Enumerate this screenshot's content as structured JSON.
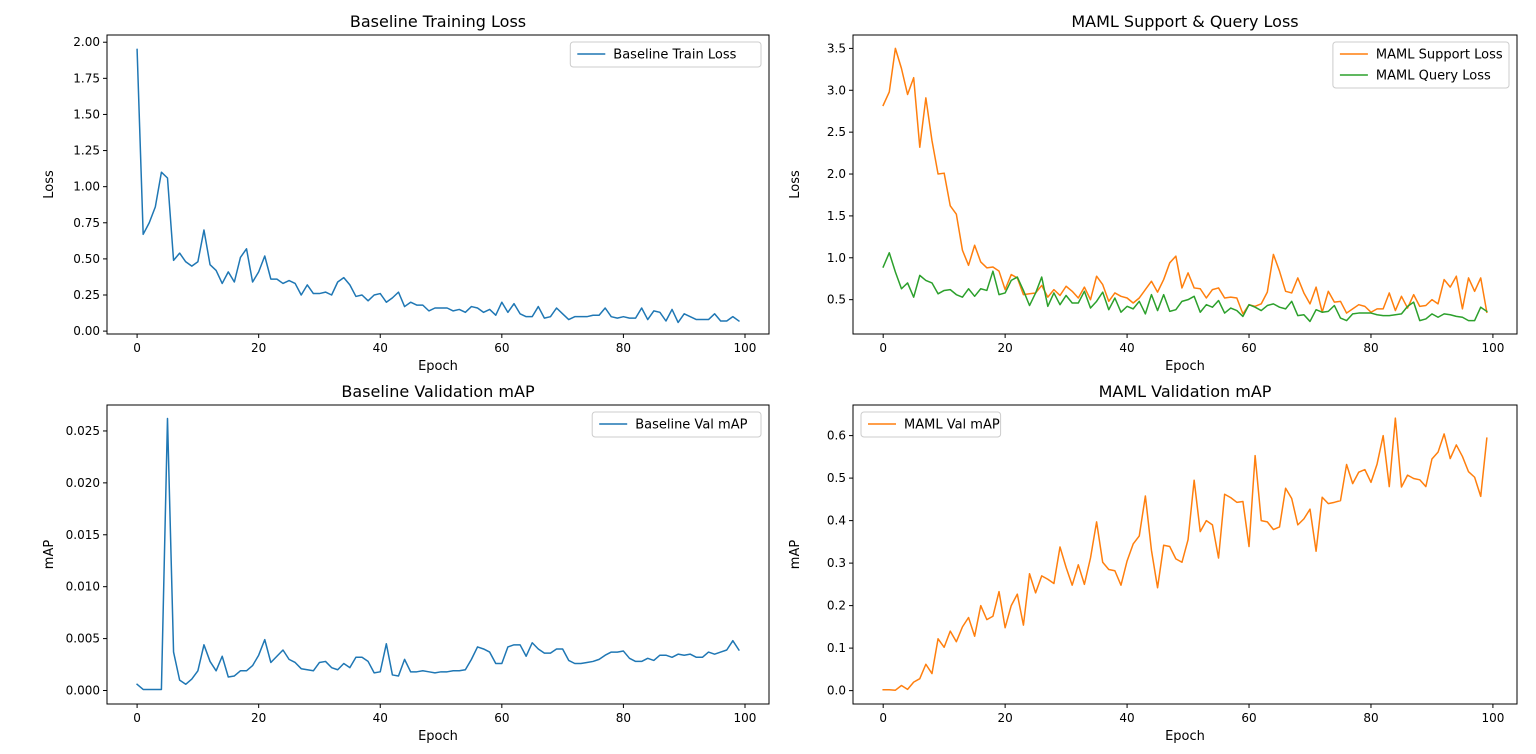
{
  "colors": {
    "blue": "#1f77b4",
    "orange": "#ff7f0e",
    "green": "#2ca02c"
  },
  "chart_data": [
    {
      "id": "baseline-training-loss",
      "type": "line",
      "title": "Baseline Training Loss",
      "xlabel": "Epoch",
      "ylabel": "Loss",
      "xlim": [
        -4.95,
        103.95
      ],
      "ylim": [
        -0.02,
        2.05
      ],
      "xticks": [
        0,
        20,
        40,
        60,
        80,
        100
      ],
      "xtick_labels": [
        "0",
        "20",
        "40",
        "60",
        "80",
        "100"
      ],
      "yticks": [
        0,
        0.25,
        0.5,
        0.75,
        1.0,
        1.25,
        1.5,
        1.75,
        2.0
      ],
      "ytick_labels": [
        "0.00",
        "0.25",
        "0.50",
        "0.75",
        "1.00",
        "1.25",
        "1.50",
        "1.75",
        "2.00"
      ],
      "legend": "top-right",
      "grid": false,
      "series": [
        {
          "name": "Baseline Train Loss",
          "color": "#1f77b4",
          "values": [
            1.95,
            0.67,
            0.75,
            0.86,
            1.1,
            1.06,
            0.49,
            0.54,
            0.48,
            0.45,
            0.48,
            0.7,
            0.46,
            0.42,
            0.33,
            0.41,
            0.34,
            0.51,
            0.57,
            0.34,
            0.41,
            0.52,
            0.36,
            0.36,
            0.33,
            0.35,
            0.33,
            0.25,
            0.32,
            0.26,
            0.26,
            0.27,
            0.25,
            0.34,
            0.37,
            0.32,
            0.24,
            0.25,
            0.21,
            0.25,
            0.26,
            0.2,
            0.23,
            0.27,
            0.17,
            0.2,
            0.18,
            0.18,
            0.14,
            0.16,
            0.16,
            0.16,
            0.14,
            0.15,
            0.13,
            0.17,
            0.16,
            0.13,
            0.15,
            0.11,
            0.2,
            0.13,
            0.19,
            0.12,
            0.1,
            0.1,
            0.17,
            0.09,
            0.1,
            0.16,
            0.12,
            0.08,
            0.1,
            0.1,
            0.1,
            0.11,
            0.11,
            0.16,
            0.1,
            0.09,
            0.1,
            0.09,
            0.09,
            0.16,
            0.08,
            0.14,
            0.13,
            0.07,
            0.15,
            0.06,
            0.12,
            0.1,
            0.08,
            0.08,
            0.08,
            0.12,
            0.07,
            0.07,
            0.1,
            0.07
          ]
        }
      ]
    },
    {
      "id": "maml-support-query-loss",
      "type": "line",
      "title": "MAML Support & Query Loss",
      "xlabel": "Epoch",
      "ylabel": "Loss",
      "xlim": [
        -4.95,
        103.95
      ],
      "ylim": [
        0.09,
        3.66
      ],
      "xticks": [
        0,
        20,
        40,
        60,
        80,
        100
      ],
      "xtick_labels": [
        "0",
        "20",
        "40",
        "60",
        "80",
        "100"
      ],
      "yticks": [
        0.5,
        1.0,
        1.5,
        2.0,
        2.5,
        3.0,
        3.5
      ],
      "ytick_labels": [
        "0.5",
        "1.0",
        "1.5",
        "2.0",
        "2.5",
        "3.0",
        "3.5"
      ],
      "legend": "top-right",
      "grid": false,
      "series": [
        {
          "name": "MAML Support Loss",
          "color": "#ff7f0e",
          "values": [
            2.82,
            2.98,
            3.5,
            3.26,
            2.95,
            3.15,
            2.32,
            2.91,
            2.4,
            2.0,
            2.01,
            1.62,
            1.52,
            1.09,
            0.91,
            1.15,
            0.95,
            0.88,
            0.89,
            0.84,
            0.62,
            0.8,
            0.76,
            0.56,
            0.57,
            0.58,
            0.67,
            0.53,
            0.62,
            0.55,
            0.66,
            0.6,
            0.52,
            0.65,
            0.5,
            0.78,
            0.68,
            0.48,
            0.58,
            0.54,
            0.52,
            0.46,
            0.52,
            0.62,
            0.72,
            0.59,
            0.74,
            0.94,
            1.02,
            0.64,
            0.82,
            0.64,
            0.63,
            0.52,
            0.62,
            0.64,
            0.52,
            0.53,
            0.52,
            0.33,
            0.44,
            0.42,
            0.45,
            0.59,
            1.04,
            0.84,
            0.6,
            0.58,
            0.76,
            0.58,
            0.45,
            0.65,
            0.35,
            0.6,
            0.47,
            0.48,
            0.34,
            0.39,
            0.44,
            0.42,
            0.35,
            0.39,
            0.39,
            0.58,
            0.37,
            0.54,
            0.4,
            0.56,
            0.42,
            0.43,
            0.5,
            0.45,
            0.74,
            0.65,
            0.78,
            0.39,
            0.76,
            0.6,
            0.76,
            0.35
          ]
        },
        {
          "name": "MAML Query Loss",
          "color": "#2ca02c",
          "values": [
            0.89,
            1.06,
            0.83,
            0.63,
            0.7,
            0.53,
            0.79,
            0.73,
            0.7,
            0.57,
            0.61,
            0.62,
            0.56,
            0.53,
            0.63,
            0.54,
            0.63,
            0.61,
            0.84,
            0.56,
            0.58,
            0.73,
            0.77,
            0.61,
            0.43,
            0.58,
            0.77,
            0.42,
            0.58,
            0.44,
            0.55,
            0.46,
            0.46,
            0.6,
            0.4,
            0.48,
            0.59,
            0.38,
            0.52,
            0.35,
            0.42,
            0.39,
            0.48,
            0.33,
            0.56,
            0.37,
            0.56,
            0.36,
            0.38,
            0.48,
            0.5,
            0.54,
            0.35,
            0.44,
            0.41,
            0.49,
            0.34,
            0.4,
            0.37,
            0.3,
            0.44,
            0.41,
            0.37,
            0.43,
            0.45,
            0.41,
            0.39,
            0.48,
            0.31,
            0.32,
            0.24,
            0.38,
            0.35,
            0.36,
            0.43,
            0.28,
            0.25,
            0.33,
            0.34,
            0.34,
            0.34,
            0.32,
            0.31,
            0.31,
            0.32,
            0.33,
            0.42,
            0.47,
            0.25,
            0.27,
            0.33,
            0.29,
            0.33,
            0.32,
            0.3,
            0.29,
            0.25,
            0.25,
            0.41,
            0.36
          ]
        }
      ]
    },
    {
      "id": "baseline-validation-map",
      "type": "line",
      "title": "Baseline Validation mAP",
      "xlabel": "Epoch",
      "ylabel": "mAP",
      "xlim": [
        -4.95,
        103.95
      ],
      "ylim": [
        -0.0013,
        0.0275
      ],
      "xticks": [
        0,
        20,
        40,
        60,
        80,
        100
      ],
      "xtick_labels": [
        "0",
        "20",
        "40",
        "60",
        "80",
        "100"
      ],
      "yticks": [
        0,
        0.005,
        0.01,
        0.015,
        0.02,
        0.025
      ],
      "ytick_labels": [
        "0.000",
        "0.005",
        "0.010",
        "0.015",
        "0.020",
        "0.025"
      ],
      "legend": "top-right",
      "grid": false,
      "series": [
        {
          "name": "Baseline Val mAP",
          "color": "#1f77b4",
          "values": [
            0.0006,
            0.0001,
            0.0001,
            0.0001,
            0.0001,
            0.0262,
            0.0037,
            0.001,
            0.0006,
            0.0011,
            0.0019,
            0.0044,
            0.0028,
            0.0019,
            0.0033,
            0.0013,
            0.0014,
            0.0019,
            0.0019,
            0.0024,
            0.0034,
            0.0049,
            0.0027,
            0.0033,
            0.0039,
            0.003,
            0.0027,
            0.0021,
            0.002,
            0.0019,
            0.0027,
            0.0028,
            0.0022,
            0.002,
            0.0026,
            0.0022,
            0.0032,
            0.0032,
            0.0028,
            0.0017,
            0.0018,
            0.0045,
            0.0015,
            0.0014,
            0.003,
            0.0018,
            0.0018,
            0.0019,
            0.0018,
            0.0017,
            0.0018,
            0.0018,
            0.0019,
            0.0019,
            0.002,
            0.003,
            0.0042,
            0.004,
            0.0037,
            0.0026,
            0.0026,
            0.0042,
            0.0044,
            0.0044,
            0.0033,
            0.0046,
            0.004,
            0.0036,
            0.0036,
            0.004,
            0.004,
            0.0029,
            0.0026,
            0.0026,
            0.0027,
            0.0028,
            0.003,
            0.0034,
            0.0037,
            0.0037,
            0.0038,
            0.0031,
            0.0028,
            0.0028,
            0.0031,
            0.0029,
            0.0034,
            0.0034,
            0.0032,
            0.0035,
            0.0034,
            0.0035,
            0.0032,
            0.0032,
            0.0037,
            0.0035,
            0.0037,
            0.0039,
            0.0048,
            0.0039
          ]
        }
      ]
    },
    {
      "id": "maml-validation-map",
      "type": "line",
      "title": "MAML Validation mAP",
      "xlabel": "Epoch",
      "ylabel": "mAP",
      "xlim": [
        -4.95,
        103.95
      ],
      "ylim": [
        -0.0315,
        0.672
      ],
      "xticks": [
        0,
        20,
        40,
        60,
        80,
        100
      ],
      "xtick_labels": [
        "0",
        "20",
        "40",
        "60",
        "80",
        "100"
      ],
      "yticks": [
        0,
        0.1,
        0.2,
        0.3,
        0.4,
        0.5,
        0.6
      ],
      "ytick_labels": [
        "0.0",
        "0.1",
        "0.2",
        "0.3",
        "0.4",
        "0.5",
        "0.6"
      ],
      "legend": "top-left",
      "grid": false,
      "series": [
        {
          "name": "MAML Val mAP",
          "color": "#ff7f0e",
          "values": [
            0.002,
            0.002,
            0.001,
            0.012,
            0.003,
            0.02,
            0.028,
            0.062,
            0.04,
            0.122,
            0.102,
            0.14,
            0.115,
            0.15,
            0.172,
            0.128,
            0.2,
            0.167,
            0.175,
            0.233,
            0.148,
            0.2,
            0.227,
            0.154,
            0.275,
            0.23,
            0.27,
            0.262,
            0.252,
            0.338,
            0.29,
            0.248,
            0.296,
            0.25,
            0.312,
            0.397,
            0.302,
            0.285,
            0.282,
            0.248,
            0.305,
            0.345,
            0.364,
            0.458,
            0.33,
            0.242,
            0.342,
            0.339,
            0.31,
            0.302,
            0.355,
            0.495,
            0.374,
            0.4,
            0.39,
            0.312,
            0.462,
            0.454,
            0.443,
            0.445,
            0.339,
            0.553,
            0.4,
            0.397,
            0.379,
            0.385,
            0.476,
            0.452,
            0.39,
            0.404,
            0.427,
            0.328,
            0.455,
            0.44,
            0.443,
            0.447,
            0.532,
            0.487,
            0.514,
            0.52,
            0.49,
            0.533,
            0.6,
            0.48,
            0.641,
            0.479,
            0.507,
            0.499,
            0.496,
            0.48,
            0.545,
            0.561,
            0.604,
            0.546,
            0.578,
            0.551,
            0.515,
            0.502,
            0.457,
            0.594
          ]
        }
      ]
    }
  ]
}
